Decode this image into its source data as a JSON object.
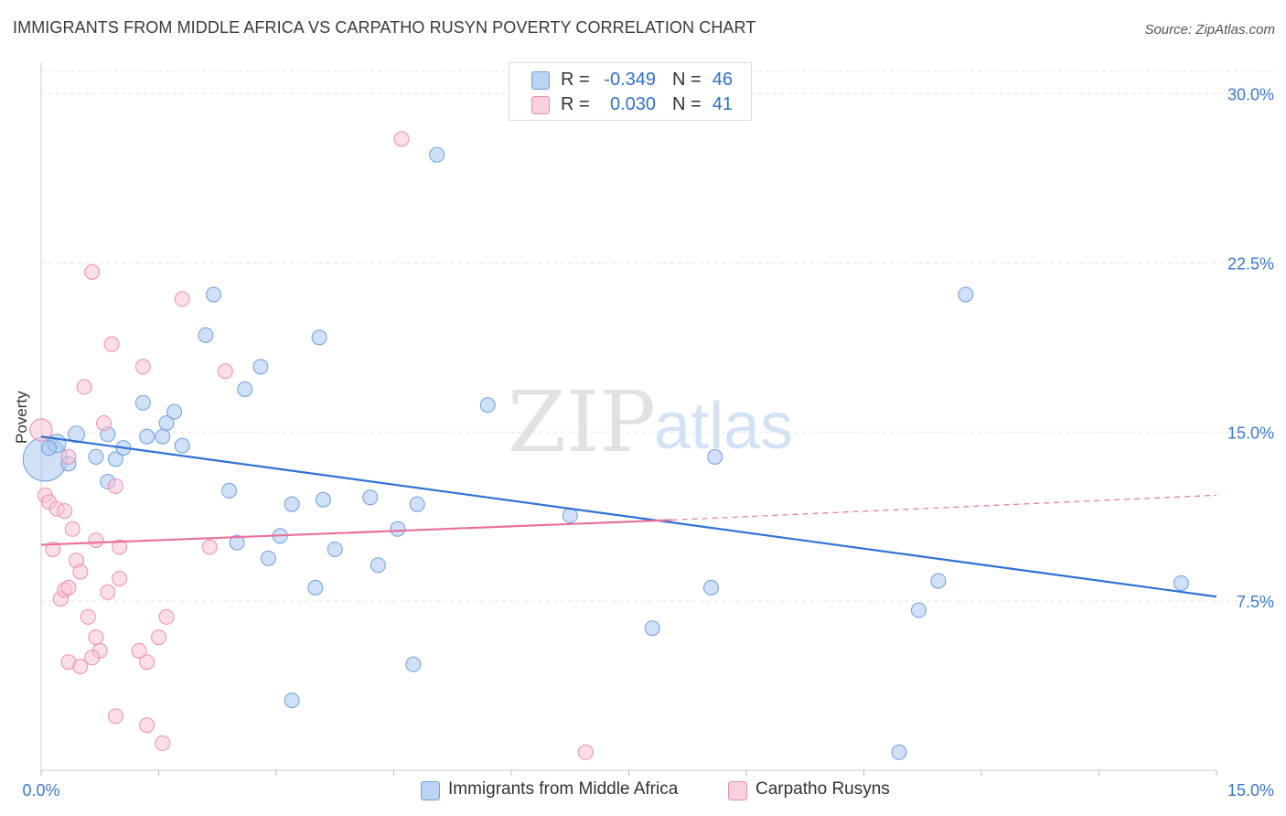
{
  "header": {
    "title": "IMMIGRANTS FROM MIDDLE AFRICA VS CARPATHO RUSYN POVERTY CORRELATION CHART",
    "source": "Source: ZipAtlas.com"
  },
  "watermark": {
    "zip": "ZIP",
    "atlas": "atlas"
  },
  "legend_top": {
    "rows": [
      {
        "r_label": "R =",
        "r_value": "-0.349",
        "n_label": "N =",
        "n_value": "46"
      },
      {
        "r_label": "R =",
        "r_value": "0.030",
        "n_label": "N =",
        "n_value": "41"
      }
    ]
  },
  "legend_bottom": {
    "items": [
      {
        "label": "Immigrants from Middle Africa"
      },
      {
        "label": "Carpatho Rusyns"
      }
    ]
  },
  "colors": {
    "blue_fill": "#a9c7ef",
    "blue_stroke": "#6f9fe0",
    "blue_line": "#2f72d6",
    "pink_fill": "#f7c3d3",
    "pink_stroke": "#ec8fae",
    "pink_line": "#e9709b",
    "tick_label": "#3a78d4",
    "grid": "#e3e3e3"
  },
  "chart_data": {
    "type": "scatter",
    "title": "IMMIGRANTS FROM MIDDLE AFRICA VS CARPATHO RUSYN POVERTY CORRELATION CHART",
    "xlabel": "",
    "ylabel": "Poverty",
    "xlim": [
      0,
      15
    ],
    "ylim": [
      0,
      31
    ],
    "x_tick_labels": [
      "0.0%",
      "15.0%"
    ],
    "y_ticks": [
      7.5,
      15.0,
      22.5,
      30.0
    ],
    "y_tick_labels": [
      "7.5%",
      "15.0%",
      "22.5%",
      "30.0%"
    ],
    "grid": true,
    "legend_position": "top-center",
    "series": [
      {
        "name": "Immigrants from Middle Africa",
        "color": "blue",
        "r": -0.349,
        "n": 46,
        "trend": {
          "x": [
            0,
            15
          ],
          "y": [
            14.8,
            7.7
          ]
        },
        "points": [
          [
            0.05,
            13.8,
            24
          ],
          [
            0.2,
            14.5,
            10
          ],
          [
            0.45,
            14.9,
            9
          ],
          [
            0.35,
            13.6,
            8
          ],
          [
            0.7,
            13.9,
            8
          ],
          [
            0.85,
            14.9,
            8
          ],
          [
            0.95,
            13.8,
            8
          ],
          [
            1.05,
            14.3,
            8
          ],
          [
            0.85,
            12.8,
            8
          ],
          [
            1.35,
            14.8,
            8
          ],
          [
            1.3,
            16.3,
            8
          ],
          [
            1.6,
            15.4,
            8
          ],
          [
            1.7,
            15.9,
            8
          ],
          [
            1.55,
            14.8,
            8
          ],
          [
            1.8,
            14.4,
            8
          ],
          [
            2.2,
            21.1,
            8
          ],
          [
            2.1,
            19.3,
            8
          ],
          [
            2.4,
            12.4,
            8
          ],
          [
            2.5,
            10.1,
            8
          ],
          [
            2.6,
            16.9,
            8
          ],
          [
            2.8,
            17.9,
            8
          ],
          [
            2.9,
            9.4,
            8
          ],
          [
            3.05,
            10.4,
            8
          ],
          [
            3.2,
            11.8,
            8
          ],
          [
            3.5,
            8.1,
            8
          ],
          [
            3.55,
            19.2,
            8
          ],
          [
            3.6,
            12.0,
            8
          ],
          [
            3.75,
            9.8,
            8
          ],
          [
            4.2,
            12.1,
            8
          ],
          [
            4.3,
            9.1,
            8
          ],
          [
            4.55,
            10.7,
            8
          ],
          [
            4.8,
            11.8,
            8
          ],
          [
            5.05,
            27.3,
            8
          ],
          [
            4.75,
            4.7,
            8
          ],
          [
            3.2,
            3.1,
            8
          ],
          [
            5.7,
            16.2,
            8
          ],
          [
            6.75,
            11.3,
            8
          ],
          [
            7.8,
            6.3,
            8
          ],
          [
            8.6,
            13.9,
            8
          ],
          [
            8.55,
            8.1,
            8
          ],
          [
            11.8,
            21.1,
            8
          ],
          [
            11.45,
            8.4,
            8
          ],
          [
            11.2,
            7.1,
            8
          ],
          [
            10.95,
            0.8,
            8
          ],
          [
            14.55,
            8.3,
            8
          ],
          [
            0.1,
            14.3,
            8
          ]
        ]
      },
      {
        "name": "Carpatho Rusyns",
        "color": "pink",
        "r": 0.03,
        "n": 41,
        "trend": {
          "x": [
            0,
            8.05
          ],
          "y": [
            10.0,
            11.1
          ]
        },
        "trend_dashed": {
          "x": [
            8.05,
            15
          ],
          "y": [
            11.1,
            12.2
          ]
        },
        "points": [
          [
            0.0,
            15.1,
            12
          ],
          [
            0.05,
            12.2,
            8
          ],
          [
            0.1,
            11.9,
            8
          ],
          [
            0.2,
            11.6,
            8
          ],
          [
            0.3,
            11.5,
            8
          ],
          [
            0.15,
            9.8,
            8
          ],
          [
            0.4,
            10.7,
            8
          ],
          [
            0.25,
            7.6,
            8
          ],
          [
            0.3,
            8.0,
            8
          ],
          [
            0.35,
            8.1,
            8
          ],
          [
            0.45,
            9.3,
            8
          ],
          [
            0.5,
            8.8,
            8
          ],
          [
            0.55,
            17.0,
            8
          ],
          [
            0.65,
            22.1,
            8
          ],
          [
            0.6,
            6.8,
            8
          ],
          [
            0.7,
            5.9,
            8
          ],
          [
            0.75,
            5.3,
            8
          ],
          [
            0.7,
            10.2,
            8
          ],
          [
            0.8,
            15.4,
            8
          ],
          [
            0.9,
            18.9,
            8
          ],
          [
            0.85,
            7.9,
            8
          ],
          [
            0.95,
            12.6,
            8
          ],
          [
            1.0,
            8.5,
            8
          ],
          [
            1.0,
            9.9,
            8
          ],
          [
            1.3,
            17.9,
            8
          ],
          [
            1.25,
            5.3,
            8
          ],
          [
            1.35,
            4.8,
            8
          ],
          [
            1.35,
            2.0,
            8
          ],
          [
            1.5,
            5.9,
            8
          ],
          [
            1.55,
            1.2,
            8
          ],
          [
            1.6,
            6.8,
            8
          ],
          [
            1.8,
            20.9,
            8
          ],
          [
            2.15,
            9.9,
            8
          ],
          [
            2.35,
            17.7,
            8
          ],
          [
            4.6,
            28.0,
            8
          ],
          [
            0.35,
            4.8,
            8
          ],
          [
            0.5,
            4.6,
            8
          ],
          [
            0.65,
            5.0,
            8
          ],
          [
            0.95,
            2.4,
            8
          ],
          [
            6.95,
            0.8,
            8
          ],
          [
            0.35,
            13.9,
            8
          ]
        ]
      }
    ]
  }
}
